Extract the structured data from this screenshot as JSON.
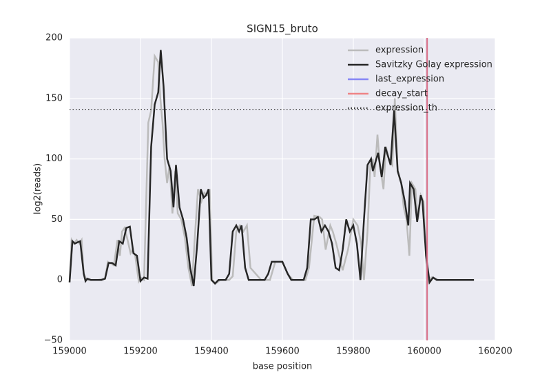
{
  "chart_data": {
    "type": "line",
    "title": "SIGN15_bruto",
    "xlabel": "base position",
    "ylabel": "log2(reads)",
    "xlim": [
      159000,
      160200
    ],
    "ylim": [
      -50,
      200
    ],
    "xticks": [
      159000,
      159200,
      159400,
      159600,
      159800,
      160000,
      160200
    ],
    "yticks": [
      {
        "value": -50,
        "label": "−50"
      },
      0,
      50,
      100,
      150,
      200
    ],
    "grid": true,
    "legend": "upper right",
    "series": [
      {
        "name": "expression",
        "color": "#bbbbbb",
        "kind": "line",
        "x": [
          159000,
          159006,
          159012,
          159020,
          159028,
          159034,
          159040,
          159048,
          159060,
          159080,
          159100,
          159108,
          159125,
          159135,
          159142,
          159148,
          159155,
          159162,
          159172,
          159178,
          159185,
          159195,
          159200,
          159210,
          159222,
          159230,
          159240,
          159250,
          159256,
          159262,
          159268,
          159275,
          159282,
          159290,
          159298,
          159305,
          159315,
          159325,
          159335,
          159345,
          159352,
          159362,
          159372,
          159380,
          159388,
          159395,
          159402,
          159412,
          159425,
          159450,
          159460,
          159470,
          159480,
          159490,
          159500,
          159510,
          159540,
          159565,
          159580,
          159600,
          159615,
          159630,
          159665,
          159675,
          159690,
          159705,
          159712,
          159722,
          159735,
          159742,
          159752,
          159770,
          159785,
          159800,
          159812,
          159822,
          159830,
          159840,
          159848,
          159855,
          159860,
          159868,
          159875,
          159885,
          159892,
          159900,
          159910,
          159917,
          159925,
          159935,
          159942,
          159950,
          159958,
          159965,
          159975,
          159982,
          159990,
          159998,
          160005,
          160012,
          160020,
          160040,
          160100,
          160140
        ],
        "values": [
          -2,
          33,
          30,
          33,
          30,
          33,
          5,
          0,
          0,
          0,
          1,
          15,
          12,
          33,
          20,
          40,
          43,
          35,
          22,
          25,
          20,
          -1,
          2,
          0,
          130,
          140,
          185,
          180,
          150,
          130,
          100,
          80,
          95,
          55,
          90,
          55,
          50,
          35,
          10,
          -5,
          30,
          75,
          65,
          72,
          70,
          75,
          0,
          -3,
          0,
          0,
          3,
          40,
          45,
          40,
          45,
          10,
          0,
          0,
          15,
          15,
          5,
          0,
          0,
          10,
          53,
          52,
          50,
          25,
          45,
          40,
          30,
          8,
          25,
          50,
          45,
          30,
          0,
          40,
          95,
          100,
          85,
          120,
          95,
          75,
          110,
          100,
          95,
          150,
          90,
          80,
          60,
          50,
          20,
          80,
          75,
          50,
          70,
          65,
          20,
          -2,
          2,
          0,
          0,
          0
        ]
      },
      {
        "name": "Savitzky Golay expression",
        "color": "#262626",
        "kind": "line",
        "x": [
          159000,
          159008,
          159015,
          159022,
          159030,
          159040,
          159045,
          159050,
          159060,
          159070,
          159080,
          159090,
          159100,
          159110,
          159120,
          159130,
          159140,
          159150,
          159160,
          159170,
          159180,
          159190,
          159200,
          159210,
          159220,
          159230,
          159240,
          159250,
          159257,
          159265,
          159275,
          159285,
          159293,
          159300,
          159310,
          159320,
          159330,
          159340,
          159350,
          159360,
          159370,
          159378,
          159385,
          159392,
          159400,
          159410,
          159420,
          159430,
          159440,
          159450,
          159460,
          159470,
          159478,
          159485,
          159495,
          159505,
          159515,
          159530,
          159550,
          159560,
          159570,
          159580,
          159590,
          159600,
          159615,
          159625,
          159640,
          159660,
          159670,
          159680,
          159690,
          159700,
          159710,
          159720,
          159730,
          159740,
          159750,
          159760,
          159770,
          159780,
          159790,
          159800,
          159810,
          159820,
          159830,
          159840,
          159850,
          159855,
          159865,
          159870,
          159880,
          159890,
          159895,
          159905,
          159915,
          159925,
          159935,
          159945,
          159955,
          159960,
          159970,
          159980,
          159990,
          159995,
          160005,
          160015,
          160025,
          160035,
          160050,
          160100,
          160140
        ],
        "values": [
          -2,
          32,
          30,
          31,
          32,
          5,
          -1,
          1,
          0,
          0,
          0,
          0,
          1,
          14,
          14,
          12,
          32,
          30,
          43,
          44,
          22,
          20,
          -1,
          2,
          1,
          110,
          145,
          155,
          190,
          160,
          100,
          90,
          60,
          95,
          60,
          50,
          35,
          10,
          -5,
          30,
          75,
          68,
          70,
          75,
          0,
          -3,
          0,
          0,
          0,
          5,
          40,
          45,
          40,
          45,
          10,
          0,
          0,
          0,
          0,
          5,
          15,
          15,
          15,
          15,
          5,
          0,
          0,
          0,
          10,
          50,
          50,
          52,
          40,
          45,
          40,
          30,
          10,
          8,
          25,
          50,
          40,
          45,
          30,
          0,
          50,
          95,
          100,
          90,
          100,
          105,
          85,
          110,
          105,
          95,
          140,
          90,
          80,
          65,
          45,
          80,
          75,
          48,
          70,
          65,
          20,
          -2,
          2,
          0,
          0,
          0,
          0
        ]
      },
      {
        "name": "last_expression",
        "color": "#6d6df5",
        "kind": "vline",
        "x": 160008
      },
      {
        "name": "decay_start",
        "color": "#f06a6a",
        "kind": "vline",
        "x": 160008
      },
      {
        "name": "expression_th",
        "color": "#333333",
        "kind": "hline",
        "value": 141
      }
    ]
  }
}
